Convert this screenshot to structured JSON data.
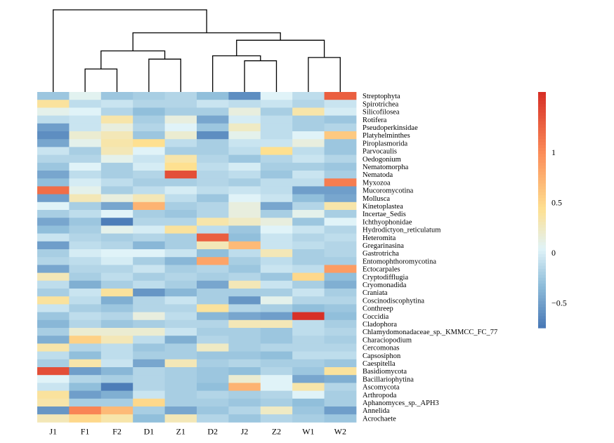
{
  "chart_data": {
    "type": "heatmap",
    "title": "",
    "xlabel": "",
    "ylabel": "",
    "columns": [
      "J1",
      "F1",
      "F2",
      "D1",
      "Z1",
      "D2",
      "J2",
      "Z2",
      "W1",
      "W2"
    ],
    "rows": [
      "Streptophyta",
      "Spirotrichea",
      "Silicofilosea",
      "Rotifera",
      "Pseudoperkinsidae",
      "Platyhelminthes",
      "Piroplasmorida",
      "Parvocaulis",
      "Oedogonium",
      "Nematomorpha",
      "Nematoda",
      "Myxozoa",
      "Mucoromycotina",
      "Mollusca",
      "Kinetoplastea",
      "Incertae_Sedis",
      "Ichthyophonidae",
      "Hydrodictyon_reticulatum",
      "Heteromita",
      "Gregarinasina",
      "Gastrotricha",
      "Entomophthoromycotina",
      "Ectocarpales",
      "Cryptodifflugia",
      "Cryomonadida",
      "Craniata",
      "Coscinodiscophytina",
      "Conthreep",
      "Coccidia",
      "Cladophora",
      "Chlamydomonadaceae_sp._KMMCC_FC_77",
      "Characiopodium",
      "Cercomonas",
      "Capsosiphon",
      "Caespitella",
      "Basidiomycota",
      "Bacillariophytina",
      "Ascomycota",
      "Arthropoda",
      "Aphanomyces_sp._APH3",
      "Annelida",
      "Acrochaete"
    ],
    "values": [
      [
        -0.25,
        0.08,
        -0.25,
        -0.2,
        -0.15,
        -0.3,
        -0.6,
        0.05,
        -0.1,
        1.3
      ],
      [
        0.4,
        -0.1,
        -0.05,
        -0.15,
        -0.15,
        -0.05,
        -0.1,
        -0.05,
        -0.15,
        -0.05
      ],
      [
        0.1,
        0.05,
        -0.15,
        -0.3,
        -0.2,
        -0.2,
        0.15,
        -0.2,
        0.35,
        0
      ],
      [
        -0.1,
        -0.05,
        0.35,
        -0.2,
        0.15,
        -0.45,
        0,
        -0.1,
        -0.2,
        -0.25
      ],
      [
        -0.5,
        -0.05,
        0.15,
        -0.15,
        0.05,
        -0.25,
        0.25,
        -0.1,
        -0.2,
        -0.15
      ],
      [
        -0.6,
        0.2,
        0.3,
        -0.25,
        0.2,
        -0.6,
        0.1,
        -0.1,
        0.05,
        0.6
      ],
      [
        -0.45,
        0.1,
        0.35,
        0.45,
        -0.1,
        -0.2,
        -0.05,
        -0.05,
        0.15,
        -0.25
      ],
      [
        -0.05,
        -0.2,
        0.3,
        0.05,
        -0.2,
        -0.2,
        -0.1,
        0.45,
        -0.1,
        -0.25
      ],
      [
        -0.15,
        -0.15,
        0.1,
        -0.05,
        0.35,
        -0.15,
        -0.25,
        -0.15,
        -0.05,
        -0.15
      ],
      [
        -0.25,
        0.05,
        -0.2,
        0,
        0.45,
        -0.1,
        0,
        -0.2,
        -0.2,
        -0.25
      ],
      [
        -0.45,
        -0.1,
        -0.2,
        -0.15,
        1.4,
        -0.15,
        -0.1,
        -0.25,
        -0.05,
        -0.2
      ],
      [
        -0.3,
        0,
        -0.1,
        -0.2,
        -0.2,
        -0.15,
        -0.2,
        -0.1,
        -0.1,
        1.1
      ],
      [
        1.2,
        0.1,
        -0.2,
        -0.1,
        0,
        -0.1,
        -0.05,
        -0.1,
        -0.5,
        -0.5
      ],
      [
        -0.5,
        0.3,
        0.15,
        0.3,
        -0.1,
        -0.25,
        0.05,
        -0.05,
        -0.3,
        -0.45
      ],
      [
        0.05,
        -0.2,
        -0.45,
        0.75,
        -0.2,
        -0.15,
        0.15,
        -0.45,
        -0.15,
        0.35
      ],
      [
        -0.2,
        -0.1,
        0.05,
        -0.2,
        -0.25,
        -0.15,
        0.15,
        -0.2,
        0.1,
        -0.2
      ],
      [
        -0.45,
        -0.25,
        -0.7,
        -0.15,
        -0.15,
        0.35,
        0.25,
        0.15,
        -0.25,
        0.05
      ],
      [
        -0.3,
        -0.2,
        0.1,
        0,
        0.4,
        -0.1,
        -0.25,
        0.05,
        -0.05,
        -0.15
      ],
      [
        -0.05,
        -0.15,
        -0.2,
        -0.15,
        -0.2,
        1.3,
        -0.3,
        -0.05,
        -0.15,
        -0.1
      ],
      [
        -0.5,
        -0.1,
        -0.15,
        -0.35,
        -0.2,
        0.3,
        0.7,
        -0.05,
        -0.1,
        -0.15
      ],
      [
        -0.2,
        0,
        0.05,
        0.05,
        -0.05,
        -0.3,
        -0.1,
        0.3,
        -0.2,
        -0.15
      ],
      [
        -0.15,
        -0.1,
        0,
        -0.2,
        -0.35,
        0.85,
        -0.2,
        -0.1,
        -0.2,
        -0.2
      ],
      [
        -0.45,
        -0.15,
        -0.15,
        -0.05,
        -0.2,
        -0.15,
        -0.25,
        -0.05,
        -0.1,
        0.9
      ],
      [
        0.3,
        -0.2,
        -0.1,
        -0.2,
        -0.15,
        -0.2,
        -0.15,
        -0.25,
        0.5,
        -0.3
      ],
      [
        -0.1,
        -0.4,
        -0.2,
        -0.1,
        -0.2,
        -0.45,
        0.3,
        -0.05,
        -0.2,
        -0.4
      ],
      [
        -0.2,
        -0.05,
        0.4,
        -0.55,
        -0.35,
        -0.2,
        -0.2,
        -0.2,
        -0.05,
        -0.2
      ],
      [
        0.4,
        -0.1,
        -0.4,
        -0.15,
        -0.05,
        -0.2,
        -0.55,
        0.1,
        -0.15,
        -0.15
      ],
      [
        -0.05,
        -0.2,
        -0.25,
        -0.15,
        -0.15,
        0.4,
        -0.15,
        -0.2,
        -0.3,
        -0.25
      ],
      [
        -0.25,
        -0.1,
        -0.15,
        0.15,
        -0.1,
        -0.35,
        -0.45,
        -0.5,
        1.6,
        -0.3
      ],
      [
        -0.35,
        -0.15,
        -0.25,
        -0.2,
        -0.15,
        -0.15,
        0.3,
        0.3,
        -0.1,
        -0.2
      ],
      [
        -0.2,
        0.2,
        0.2,
        0.2,
        -0.05,
        -0.2,
        -0.2,
        -0.25,
        -0.1,
        -0.15
      ],
      [
        -0.4,
        0.55,
        0.3,
        -0.1,
        -0.4,
        -0.15,
        -0.2,
        -0.25,
        -0.15,
        -0.2
      ],
      [
        0.35,
        -0.15,
        -0.1,
        -0.25,
        -0.2,
        0.25,
        -0.2,
        -0.15,
        -0.15,
        -0.15
      ],
      [
        -0.1,
        -0.3,
        -0.1,
        -0.2,
        -0.2,
        -0.25,
        -0.25,
        -0.3,
        -0.1,
        -0.1
      ],
      [
        -0.2,
        0.35,
        -0.05,
        -0.45,
        0.3,
        -0.2,
        -0.15,
        -0.2,
        -0.2,
        -0.25
      ],
      [
        1.4,
        -0.5,
        -0.35,
        -0.15,
        -0.2,
        -0.25,
        -0.3,
        -0.15,
        -0.25,
        0.4
      ],
      [
        0.05,
        -0.15,
        -0.2,
        -0.15,
        -0.2,
        -0.25,
        0.2,
        0.05,
        -0.45,
        -0.4
      ],
      [
        -0.05,
        -0.3,
        -0.7,
        -0.15,
        -0.2,
        -0.3,
        0.75,
        0.05,
        0.35,
        -0.15
      ],
      [
        0.4,
        -0.5,
        -0.4,
        -0.05,
        -0.2,
        -0.15,
        -0.2,
        -0.15,
        0.05,
        -0.2
      ],
      [
        0.35,
        -0.2,
        -0.2,
        0.5,
        -0.2,
        -0.2,
        -0.25,
        -0.2,
        -0.3,
        -0.2
      ],
      [
        -0.55,
        1.05,
        0.7,
        -0.2,
        -0.45,
        -0.25,
        -0.15,
        0.25,
        -0.25,
        -0.5
      ],
      [
        0.3,
        0.5,
        0.35,
        -0.3,
        0.3,
        -0.15,
        -0.25,
        -0.15,
        -0.2,
        -0.25
      ]
    ],
    "color_scale": {
      "min": -0.75,
      "max": 1.6,
      "stops": [
        {
          "value": -0.75,
          "color": "#4575b4"
        },
        {
          "value": -0.3,
          "color": "#91bfdb"
        },
        {
          "value": 0.05,
          "color": "#e0f3f8"
        },
        {
          "value": 0.45,
          "color": "#fee090"
        },
        {
          "value": 1.0,
          "color": "#fc8d59"
        },
        {
          "value": 1.6,
          "color": "#d73027"
        }
      ],
      "ticks": [
        {
          "value": -0.5,
          "label": "−0.5"
        },
        {
          "value": 0,
          "label": "0"
        },
        {
          "value": 0.5,
          "label": "0.5"
        },
        {
          "value": 1,
          "label": "1"
        }
      ]
    },
    "dendrogram": [
      {
        "a": "c2",
        "b": "c3",
        "h": 0.28
      },
      {
        "a": "c7",
        "b": "c8",
        "h": 0.38
      },
      {
        "a": "c4",
        "b": "c5",
        "h": 0.4
      },
      {
        "a": "c9",
        "b": "c10",
        "h": 0.42
      },
      {
        "a": "c6",
        "b": "n2",
        "h": 0.44
      },
      {
        "a": "n1",
        "b": "n3",
        "h": 0.5
      },
      {
        "a": "n5",
        "b": "n4",
        "h": 0.63
      },
      {
        "a": "n6",
        "b": "n7",
        "h": 0.72
      },
      {
        "a": "c1",
        "b": "n8",
        "h": 1.0
      }
    ]
  }
}
